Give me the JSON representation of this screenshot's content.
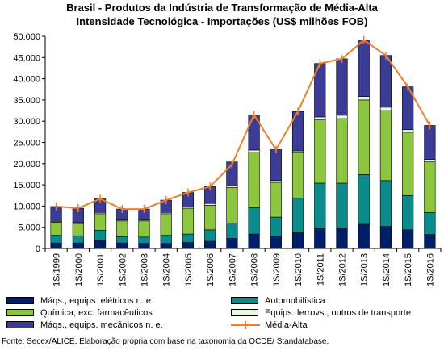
{
  "chart_data": {
    "type": "bar",
    "title": "Brasil - Produtos da Indústria de Transformação de Média-Alta",
    "subtitle": "Intensidade Tecnológica - Importações (US$ milhões FOB)",
    "categories": [
      "1S/1999",
      "1S/2000",
      "1S/2001",
      "1S/2002",
      "1S/2003",
      "1S/2004",
      "1S/2005",
      "1S/2006",
      "1S/2007",
      "1S/2008",
      "1S/2009",
      "1S/2010",
      "1S/2011",
      "1S/2012",
      "1S/2013",
      "1S/2014",
      "1S/2015",
      "1S/2016"
    ],
    "ylim": [
      0,
      50000
    ],
    "y_ticks": [
      "0",
      "5.000",
      "10.000",
      "15.000",
      "20.000",
      "25.000",
      "30.000",
      "35.000",
      "40.000",
      "45.000",
      "50.000"
    ],
    "grid": false,
    "legend_position": "bottom",
    "series": [
      {
        "name": "Máqs., equips. elétricos n. e.",
        "color": "#001F6B",
        "values": [
          1300,
          1300,
          1900,
          1300,
          1200,
          1200,
          1400,
          1700,
          2400,
          3400,
          2800,
          3700,
          4800,
          4800,
          5700,
          5200,
          4400,
          3300
        ]
      },
      {
        "name": "Automobilística",
        "color": "#0B8C8C",
        "values": [
          1800,
          1700,
          2400,
          1500,
          1500,
          1900,
          2000,
          2700,
          3600,
          6200,
          4600,
          8200,
          10600,
          10600,
          11700,
          10800,
          8100,
          5200
        ]
      },
      {
        "name": "Química, exc. farmacêuticos",
        "color": "#8CC63F",
        "values": [
          3100,
          2900,
          3900,
          3700,
          3800,
          5100,
          6100,
          5800,
          8400,
          13100,
          8200,
          10600,
          14900,
          15200,
          17600,
          16500,
          14900,
          12000
        ]
      },
      {
        "name": "Equips. ferrovs., outros de transporte",
        "color": "#E6F8E0",
        "values": [
          200,
          200,
          300,
          200,
          200,
          300,
          300,
          400,
          400,
          500,
          400,
          500,
          700,
          800,
          800,
          800,
          600,
          500
        ]
      },
      {
        "name": "Máqs., equips. mecânicos  n. e.",
        "color": "#3A3C96",
        "values": [
          3500,
          3400,
          3200,
          2600,
          2600,
          2900,
          3400,
          4000,
          5600,
          8300,
          7300,
          9300,
          12600,
          13300,
          13300,
          12200,
          10100,
          8000
        ]
      }
    ],
    "line": {
      "name": "Média-Alta",
      "color": "#F07E26",
      "values": [
        9900,
        9500,
        11700,
        9300,
        9300,
        11400,
        13200,
        14600,
        19800,
        31500,
        23300,
        32300,
        43600,
        44700,
        49100,
        45500,
        38100,
        29000
      ]
    }
  },
  "legend": {
    "col1": [
      "Máqs., equips. elétricos n. e.",
      "Química, exc. farmacêuticos",
      "Máqs., equips. mecânicos  n. e."
    ],
    "col2": [
      "Automobilística",
      "Equips. ferrovs., outros de transporte",
      "Média-Alta"
    ]
  },
  "source": "Fonte: Secex/ALICE. Elaboração própria com base na taxonomia da OCDE/ Standatabase."
}
